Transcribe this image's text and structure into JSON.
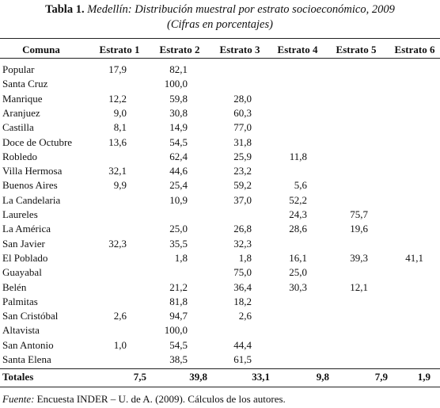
{
  "title": {
    "label": "Tabla 1.",
    "text": "Medellín: Distribución muestral por estrato socioeconómico, 2009",
    "subtitle": "(Cifras en porcentajes)"
  },
  "table": {
    "header": [
      "Comuna",
      "Estrato 1",
      "Estrato 2",
      "Estrato 3",
      "Estrato 4",
      "Estrato 5",
      "Estrato 6"
    ],
    "rows": [
      [
        "Popular",
        "17,9",
        "82,1",
        null,
        null,
        null,
        null
      ],
      [
        "Santa Cruz",
        null,
        "100,0",
        null,
        null,
        null,
        null
      ],
      [
        "Manrique",
        "12,2",
        "59,8",
        "28,0",
        null,
        null,
        null
      ],
      [
        "Aranjuez",
        "9,0",
        "30,8",
        "60,3",
        null,
        null,
        null
      ],
      [
        "Castilla",
        "8,1",
        "14,9",
        "77,0",
        null,
        null,
        null
      ],
      [
        "Doce de Octubre",
        "13,6",
        "54,5",
        "31,8",
        null,
        null,
        null
      ],
      [
        "Robledo",
        null,
        "62,4",
        "25,9",
        "11,8",
        null,
        null
      ],
      [
        "Villa Hermosa",
        "32,1",
        "44,6",
        "23,2",
        null,
        null,
        null
      ],
      [
        "Buenos Aires",
        "9,9",
        "25,4",
        "59,2",
        "5,6",
        null,
        null
      ],
      [
        "La Candelaria",
        null,
        "10,9",
        "37,0",
        "52,2",
        null,
        null
      ],
      [
        "Laureles",
        null,
        null,
        null,
        "24,3",
        "75,7",
        null
      ],
      [
        "La América",
        null,
        "25,0",
        "26,8",
        "28,6",
        "19,6",
        null
      ],
      [
        "San Javier",
        "32,3",
        "35,5",
        "32,3",
        null,
        null,
        null
      ],
      [
        "El Poblado",
        null,
        "1,8",
        "1,8",
        "16,1",
        "39,3",
        "41,1"
      ],
      [
        "Guayabal",
        null,
        null,
        "75,0",
        "25,0",
        null,
        null
      ],
      [
        "Belén",
        null,
        "21,2",
        "36,4",
        "30,3",
        "12,1",
        null
      ],
      [
        "Palmitas",
        null,
        "81,8",
        "18,2",
        null,
        null,
        null
      ],
      [
        "San Cristóbal",
        "2,6",
        "94,7",
        "2,6",
        null,
        null,
        null
      ],
      [
        "Altavista",
        null,
        "100,0",
        null,
        null,
        null,
        null
      ],
      [
        "San Antonio",
        "1,0",
        "54,5",
        "44,4",
        null,
        null,
        null
      ],
      [
        "Santa Elena",
        null,
        "38,5",
        "61,5",
        null,
        null,
        null
      ]
    ],
    "totals": [
      "Totales",
      "7,5",
      "39,8",
      "33,1",
      "9,8",
      "7,9",
      "1,9"
    ]
  },
  "footer": {
    "label": "Fuente:",
    "text": "Encuesta INDER – U. de A. (2009). Cálculos de los autores."
  }
}
